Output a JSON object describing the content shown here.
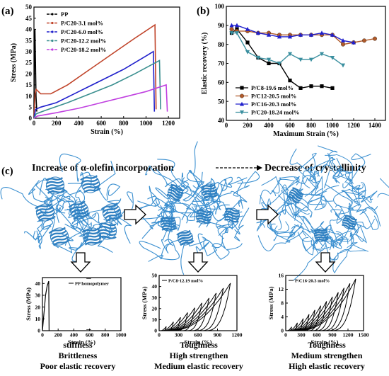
{
  "panel_labels": {
    "a": "(a)",
    "b": "(b)",
    "c": "(c)"
  },
  "chart_data": [
    {
      "type": "line",
      "panel": "a",
      "xlabel": "Strain (%)",
      "ylabel": "Stress (MPa)",
      "xlim": [
        0,
        1300
      ],
      "ylim": [
        0,
        50
      ],
      "xticks": [
        0,
        200,
        400,
        600,
        800,
        1000,
        1200
      ],
      "yticks": [
        0,
        5,
        10,
        15,
        20,
        25,
        30,
        35,
        40,
        45,
        50
      ],
      "legend_position": "top-left",
      "series": [
        {
          "name": "PP",
          "color": "#000000",
          "points": [
            [
              0,
              0
            ],
            [
              3,
              20
            ],
            [
              6,
              36
            ],
            [
              9,
              40
            ],
            [
              12,
              30
            ],
            [
              18,
              10
            ],
            [
              25,
              3
            ]
          ]
        },
        {
          "name": "P/C20-3.1 mol%",
          "color": "#c0442a",
          "points": [
            [
              0,
              0
            ],
            [
              10,
              11
            ],
            [
              20,
              13
            ],
            [
              60,
              11
            ],
            [
              150,
              11
            ],
            [
              300,
              15
            ],
            [
              500,
              22
            ],
            [
              700,
              29
            ],
            [
              900,
              36
            ],
            [
              1080,
              42
            ],
            [
              1090,
              4
            ]
          ]
        },
        {
          "name": "P/C20-6.0 mol%",
          "color": "#2020cc",
          "points": [
            [
              0,
              0
            ],
            [
              15,
              4
            ],
            [
              60,
              5
            ],
            [
              200,
              7
            ],
            [
              400,
              12
            ],
            [
              600,
              17
            ],
            [
              800,
              22
            ],
            [
              1000,
              28
            ],
            [
              1065,
              30
            ],
            [
              1075,
              3
            ]
          ]
        },
        {
          "name": "P/C20-12.2 mol%",
          "color": "#3a8f8f",
          "points": [
            [
              0,
              0
            ],
            [
              20,
              2
            ],
            [
              100,
              3.5
            ],
            [
              300,
              7
            ],
            [
              500,
              11
            ],
            [
              700,
              15
            ],
            [
              900,
              20
            ],
            [
              1120,
              26
            ],
            [
              1130,
              4
            ]
          ]
        },
        {
          "name": "P/C20-18.2 mol%",
          "color": "#c040e0",
          "points": [
            [
              0,
              0
            ],
            [
              30,
              1
            ],
            [
              200,
              2.5
            ],
            [
              400,
              4.5
            ],
            [
              600,
              7
            ],
            [
              800,
              9.5
            ],
            [
              1000,
              12
            ],
            [
              1180,
              15
            ],
            [
              1190,
              3
            ]
          ]
        }
      ]
    },
    {
      "type": "line",
      "panel": "b",
      "xlabel": "Maximum Strain (%)",
      "ylabel": "Elastic recovery (%)",
      "xlim": [
        0,
        1500
      ],
      "ylim": [
        40,
        100
      ],
      "xticks": [
        0,
        200,
        400,
        600,
        800,
        1000,
        1200,
        1400
      ],
      "yticks": [
        40,
        50,
        60,
        70,
        80,
        90,
        100
      ],
      "legend_position": "bottom-left",
      "series": [
        {
          "name": "P/C8-19.6 mol%",
          "color": "#000000",
          "marker": "square",
          "x": [
            50,
            100,
            200,
            300,
            400,
            500,
            600,
            700,
            800,
            900,
            1000
          ],
          "y": [
            86,
            88,
            81,
            73,
            70,
            70,
            61,
            57,
            58,
            58,
            57
          ]
        },
        {
          "name": "P/C12-20.5 mol%",
          "color": "#b05a2a",
          "marker": "circle",
          "x": [
            50,
            100,
            200,
            300,
            400,
            500,
            600,
            700,
            800,
            900,
            1000,
            1100,
            1200,
            1300,
            1400
          ],
          "y": [
            88,
            87,
            87,
            86,
            86,
            85,
            85,
            85,
            85,
            85,
            85,
            80,
            81,
            82,
            83
          ]
        },
        {
          "name": "P/C16-20.3 mol%",
          "color": "#2020cc",
          "marker": "triangle",
          "x": [
            50,
            100,
            200,
            300,
            400,
            500,
            600,
            700,
            800,
            900,
            1000,
            1100,
            1200
          ],
          "y": [
            90,
            90,
            88,
            86,
            85,
            84,
            84,
            85,
            85,
            86,
            85,
            82,
            81
          ]
        },
        {
          "name": "P/C20-18.24 mol%",
          "color": "#3a8f9f",
          "marker": "triangle-down",
          "x": [
            50,
            100,
            200,
            300,
            400,
            500,
            600,
            700,
            800,
            900,
            1000,
            1100
          ],
          "y": [
            86,
            86,
            76,
            73,
            72,
            70,
            75,
            72,
            72,
            75,
            73,
            69
          ]
        }
      ]
    },
    {
      "type": "line",
      "panel": "c-1",
      "xlabel": "Strain (%)",
      "ylabel": "Stress (MPa)",
      "xlim": [
        0,
        1000
      ],
      "ylim": [
        0,
        45
      ],
      "xticks": [
        0,
        200,
        400,
        600,
        800,
        1000
      ],
      "yticks": [
        0,
        10,
        20,
        30,
        40
      ],
      "series": [
        {
          "name": "PP homopolymer",
          "color": "#000000"
        }
      ]
    },
    {
      "type": "line",
      "panel": "c-2",
      "xlabel": "Strain (%)",
      "ylabel": "Stress (MPa)",
      "xlim": [
        0,
        1200
      ],
      "ylim": [
        0,
        50
      ],
      "xticks": [
        0,
        300,
        600,
        900,
        1200
      ],
      "yticks": [
        0,
        10,
        20,
        30,
        40,
        50
      ],
      "series": [
        {
          "name": "P/C8-12.19 mol%",
          "color": "#000000"
        }
      ]
    },
    {
      "type": "line",
      "panel": "c-3",
      "xlabel": "Strain (%)",
      "ylabel": "Stress (MPa)",
      "xlim": [
        0,
        1500
      ],
      "ylim": [
        0,
        16
      ],
      "xticks": [
        0,
        300,
        600,
        900,
        1200,
        1500
      ],
      "yticks": [
        0,
        4,
        8,
        12,
        16
      ],
      "series": [
        {
          "name": "P/C16-20.3 mol%",
          "color": "#000000"
        }
      ]
    }
  ],
  "panel_c": {
    "header_left": "Increase of α-olefin incorporation",
    "header_right": "Decrease of crystallinity",
    "captions": [
      [
        "stiffness",
        "Brittleness",
        "Poor elastic recovery"
      ],
      [
        "Toughness",
        "High strengthen",
        "Medium elastic recovery"
      ],
      [
        "Toughness",
        "Medium strengthen",
        "High elastic recovery"
      ]
    ]
  },
  "colors": {
    "network": "#3a8fd0",
    "crystal": "#2f7fc0"
  }
}
